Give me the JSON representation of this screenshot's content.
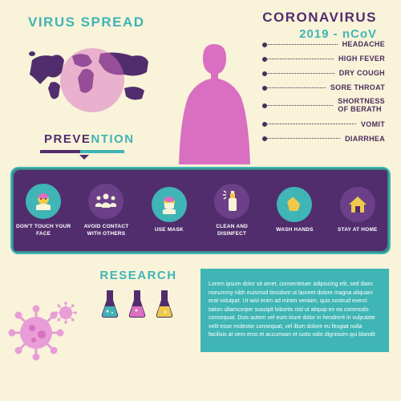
{
  "colors": {
    "bg": "#f9f3d9",
    "teal": "#3fb5b5",
    "purple": "#512d6d",
    "darkpurple": "#4a2d5c",
    "pink": "#d96fc1",
    "lightpink": "#e89dd6",
    "yellow": "#f0c94a",
    "flask_blue": "#3fb5b5",
    "flask_pink": "#d96fc1",
    "flask_yellow": "#f0c94a",
    "panel_shadow": "#3a8a8a"
  },
  "spread": {
    "title": "VIRUS SPREAD"
  },
  "main_title": {
    "line1": "CORONAVIRUS",
    "line2": "2019 - nCoV"
  },
  "symptoms": [
    "HEADACHE",
    "HIGH FEVER",
    "DRY  COUGH",
    "SORE THROAT",
    "SHORTNESS OF BERATH",
    "VOMIT",
    "DIARRHEA"
  ],
  "prevention": {
    "title": "PREVENTION",
    "items": [
      {
        "label": "DON'T TOUCH YOUR FACE",
        "icon": "face",
        "circle": "teal"
      },
      {
        "label": "AVOID CONTACT WITH OTHERS",
        "icon": "people",
        "circle": "purple"
      },
      {
        "label": "USE MASK",
        "icon": "mask",
        "circle": "teal"
      },
      {
        "label": "CLEAN AND DISINFECT",
        "icon": "spray",
        "circle": "purple"
      },
      {
        "label": "WASH HANDS",
        "icon": "wash",
        "circle": "teal"
      },
      {
        "label": "STAY AT HOME",
        "icon": "home",
        "circle": "purple"
      }
    ]
  },
  "research": {
    "title": "RESEARCH",
    "lorem": "Lorem ipsum dolor sit amet, consectetuer adipiscing elit, sed diam nonummy nibh euismod tincidunt ut laoreet dolore magna aliquam erat volutpat. Ut wisi enim ad minim veniam, quis nostrud exerci tation ullamcorper suscipit lobortis nisl ut aliquip ex ea commodo consequat. Duis autem vel eum iriure dolor in hendrerit in vulputate velit esse molestie consequat, vel illum dolore eu feugiat nulla facilisis at vero eros et accumsan et iusto odio dignissim qui blandit"
  }
}
